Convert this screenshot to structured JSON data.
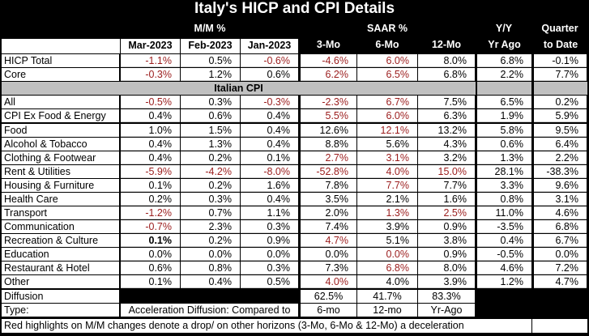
{
  "chart_data": {
    "type": "table",
    "title": "Italy's HICP and CPI Details",
    "group_headers": {
      "mm": "M/M %",
      "saar": "SAAR %",
      "yy_line1": "Y/Y",
      "yy_line2": "Yr Ago",
      "qtd_line1": "Quarter",
      "qtd_line2": "to Date"
    },
    "columns": [
      "Mar-2023",
      "Feb-2023",
      "Jan-2023",
      "3-Mo",
      "6-Mo",
      "12-Mo"
    ],
    "section_label": "Italian CPI",
    "highlight_color": "#9b1c1c",
    "hicp_rows": [
      {
        "label": "HICP Total",
        "values": [
          "-1.1%",
          "0.5%",
          "-0.6%",
          "-4.6%",
          "6.0%",
          "8.0%",
          "6.8%",
          "-0.1%"
        ],
        "red": [
          1,
          0,
          1,
          1,
          1,
          0,
          0,
          0
        ]
      },
      {
        "label": " Core",
        "values": [
          "-0.3%",
          "1.2%",
          "0.6%",
          "6.2%",
          "6.5%",
          "6.8%",
          "2.2%",
          "7.7%"
        ],
        "red": [
          1,
          0,
          0,
          1,
          1,
          0,
          0,
          0
        ]
      }
    ],
    "cpi_rows": [
      {
        "label": "All",
        "values": [
          "-0.5%",
          "0.3%",
          "-0.3%",
          "-2.3%",
          "6.7%",
          "7.5%",
          "6.5%",
          "0.2%"
        ],
        "red": [
          1,
          0,
          1,
          1,
          1,
          0,
          0,
          0
        ]
      },
      {
        "label": " CPI Ex Food & Energy",
        "values": [
          "0.4%",
          "0.6%",
          "0.4%",
          "5.5%",
          "6.0%",
          "6.3%",
          "1.9%",
          "5.9%"
        ],
        "red": [
          0,
          0,
          0,
          1,
          1,
          0,
          0,
          0
        ]
      }
    ],
    "component_rows": [
      {
        "label": "Food",
        "values": [
          "1.0%",
          "1.5%",
          "0.4%",
          "12.6%",
          "12.1%",
          "13.2%",
          "5.8%",
          "9.5%"
        ],
        "red": [
          0,
          0,
          0,
          0,
          1,
          0,
          0,
          0
        ]
      },
      {
        "label": "Alcohol & Tobacco",
        "values": [
          "0.4%",
          "1.3%",
          "0.4%",
          "8.8%",
          "5.6%",
          "4.3%",
          "0.6%",
          "6.4%"
        ],
        "red": [
          0,
          0,
          0,
          0,
          0,
          0,
          0,
          0
        ]
      },
      {
        "label": "Clothing & Footwear",
        "values": [
          "0.4%",
          "0.2%",
          "0.1%",
          "2.7%",
          "3.1%",
          "3.2%",
          "1.3%",
          "2.2%"
        ],
        "red": [
          0,
          0,
          0,
          1,
          1,
          0,
          0,
          0
        ]
      },
      {
        "label": "Rent & Utilities",
        "values": [
          "-5.9%",
          "-4.2%",
          "-8.0%",
          "-52.8%",
          "4.0%",
          "15.0%",
          "28.1%",
          "-38.3%"
        ],
        "red": [
          1,
          1,
          1,
          1,
          1,
          1,
          0,
          0
        ]
      },
      {
        "label": "Housing & Furniture",
        "values": [
          "0.1%",
          "0.2%",
          "1.6%",
          "7.8%",
          "7.7%",
          "7.7%",
          "3.3%",
          "9.6%"
        ],
        "red": [
          0,
          0,
          0,
          0,
          1,
          0,
          0,
          0
        ]
      },
      {
        "label": "Health Care",
        "values": [
          "0.2%",
          "0.3%",
          "0.4%",
          "3.5%",
          "2.1%",
          "1.6%",
          "0.8%",
          "3.1%"
        ],
        "red": [
          0,
          0,
          0,
          0,
          0,
          0,
          0,
          0
        ]
      },
      {
        "label": "Transport",
        "values": [
          "-1.2%",
          "0.7%",
          "1.1%",
          "2.0%",
          "1.3%",
          "2.5%",
          "11.0%",
          "4.6%"
        ],
        "red": [
          1,
          0,
          0,
          0,
          1,
          1,
          0,
          0
        ]
      },
      {
        "label": "Communication",
        "values": [
          "-0.7%",
          "2.3%",
          "0.3%",
          "7.4%",
          "3.9%",
          "0.9%",
          "-3.5%",
          "6.8%"
        ],
        "red": [
          1,
          0,
          0,
          0,
          0,
          0,
          0,
          0
        ]
      },
      {
        "label": "Recreation & Culture",
        "values": [
          "0.1%",
          "0.2%",
          "0.9%",
          "4.7%",
          "5.1%",
          "3.8%",
          "0.4%",
          "6.7%"
        ],
        "red": [
          0,
          0,
          0,
          1,
          0,
          0,
          0,
          0
        ],
        "bold": [
          1,
          0,
          0,
          0,
          0,
          0,
          0,
          0
        ]
      },
      {
        "label": "Education",
        "values": [
          "0.0%",
          "0.0%",
          "0.0%",
          "0.0%",
          "0.0%",
          "0.9%",
          "-0.5%",
          "0.0%"
        ],
        "red": [
          0,
          0,
          0,
          0,
          1,
          0,
          0,
          0
        ]
      },
      {
        "label": "Restaurant & Hotel",
        "values": [
          "0.6%",
          "0.8%",
          "0.3%",
          "7.3%",
          "6.8%",
          "8.0%",
          "4.6%",
          "7.2%"
        ],
        "red": [
          0,
          0,
          0,
          0,
          1,
          0,
          0,
          0
        ]
      },
      {
        "label": "Other",
        "values": [
          "0.1%",
          "0.4%",
          "0.5%",
          "4.0%",
          "4.0%",
          "3.9%",
          "1.2%",
          "4.7%"
        ],
        "red": [
          0,
          0,
          0,
          1,
          0,
          0,
          0,
          0
        ]
      }
    ],
    "diffusion": {
      "label": "Diffusion",
      "values": [
        "62.5%",
        "41.7%",
        "83.3%"
      ]
    },
    "type_row": {
      "label": "Type:",
      "description": "Acceleration Diffusion: Compared to",
      "values": [
        "6-mo",
        "12-mo",
        "Yr-Ago"
      ]
    },
    "footnote": "Red highlights on M/M changes denote a drop/ on other horizons (3-Mo, 6-Mo & 12-Mo) a deceleration"
  }
}
